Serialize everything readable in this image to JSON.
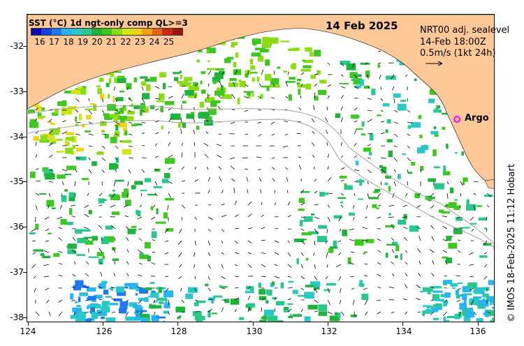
{
  "map": {
    "title_date": "14 Feb 2025",
    "colorbar": {
      "title": "SST (°C) 1d ngt-only comp QL>=3",
      "labels": [
        "16",
        "17",
        "18",
        "19",
        "20",
        "21",
        "22",
        "23",
        "24",
        "25"
      ],
      "colors": [
        "#0a0ab4",
        "#1440dc",
        "#1e78f0",
        "#28b4f0",
        "#28c8c8",
        "#28c88c",
        "#1eb43c",
        "#3cc81e",
        "#8cdc14",
        "#d2e614",
        "#f0d214",
        "#f0a014",
        "#e66414",
        "#c82814",
        "#9b1414"
      ]
    },
    "info": {
      "line1": "NRT00 adj. sealevel",
      "line2": "14-Feb 18:00Z",
      "line3": "0.5m/s (1kt 24h)"
    },
    "argo_label": "Argo",
    "credit": "© IMOS 18-Feb-2025 11:12 Hobart",
    "lon_ticks": [
      "124",
      "126",
      "128",
      "130",
      "132",
      "134",
      "136"
    ],
    "lat_ticks": [
      "-32",
      "-33",
      "-34",
      "-35",
      "-36",
      "-37",
      "-38"
    ],
    "colors": {
      "land": "#ffc896",
      "argo": "#ff00ff",
      "contour": "#a0a0a0"
    }
  }
}
